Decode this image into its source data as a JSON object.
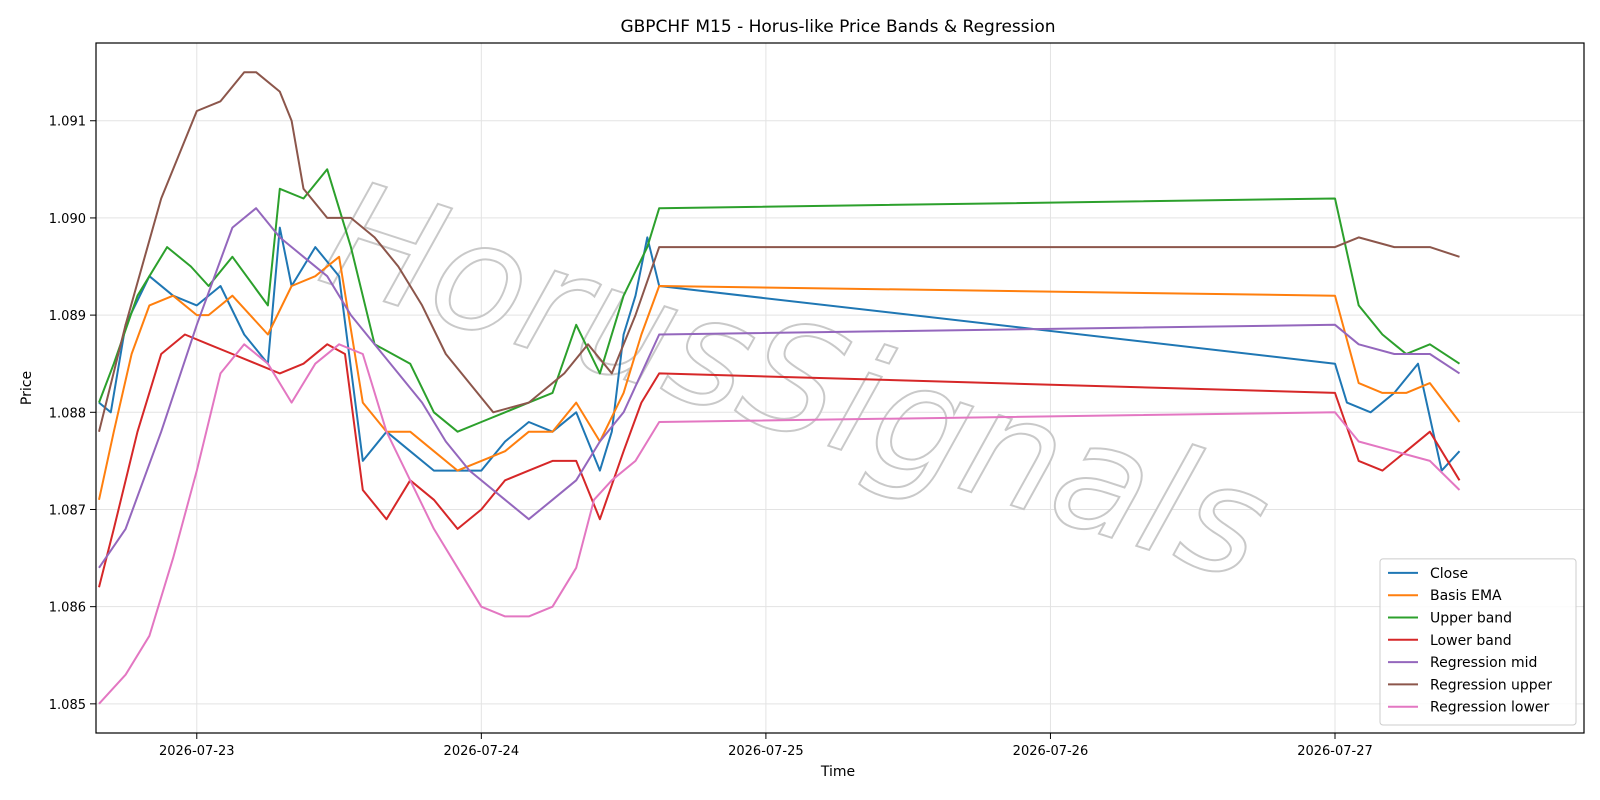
{
  "watermark": "HorusSignals",
  "chart_data": {
    "type": "line",
    "title": "GBPCHF M15 - Horus-like Price Bands & Regression",
    "xlabel": "Time",
    "ylabel": "Price",
    "x_tick_labels": [
      "2026-07-23",
      "2026-07-24",
      "2026-07-25",
      "2026-07-26",
      "2026-07-27"
    ],
    "y_tick_labels": [
      "1.085",
      "1.086",
      "1.087",
      "1.088",
      "1.089",
      "1.090",
      "1.091"
    ],
    "x_range_days": [
      "2026-07-22 15:30",
      "2026-07-27 21:00"
    ],
    "ylim": [
      1.0847,
      1.0918
    ],
    "grid": true,
    "legend_position": "lower-right",
    "series": [
      {
        "name": "Close",
        "color": "#1f77b4",
        "points": [
          [
            "2026-07-22 15:45",
            1.0881
          ],
          [
            "2026-07-22 16:45",
            1.088
          ],
          [
            "2026-07-22 18:00",
            1.0889
          ],
          [
            "2026-07-22 20:00",
            1.0894
          ],
          [
            "2026-07-22 22:00",
            1.0892
          ],
          [
            "2026-07-23 00:00",
            1.0891
          ],
          [
            "2026-07-23 02:00",
            1.0893
          ],
          [
            "2026-07-23 04:00",
            1.0888
          ],
          [
            "2026-07-23 06:00",
            1.0885
          ],
          [
            "2026-07-23 07:00",
            1.0899
          ],
          [
            "2026-07-23 08:00",
            1.0893
          ],
          [
            "2026-07-23 10:00",
            1.0897
          ],
          [
            "2026-07-23 12:00",
            1.0894
          ],
          [
            "2026-07-23 14:00",
            1.0875
          ],
          [
            "2026-07-23 16:00",
            1.0878
          ],
          [
            "2026-07-23 18:00",
            1.0876
          ],
          [
            "2026-07-23 20:00",
            1.0874
          ],
          [
            "2026-07-23 22:00",
            1.0874
          ],
          [
            "2026-07-24 00:00",
            1.0874
          ],
          [
            "2026-07-24 02:00",
            1.0877
          ],
          [
            "2026-07-24 04:00",
            1.0879
          ],
          [
            "2026-07-24 06:00",
            1.0878
          ],
          [
            "2026-07-24 08:00",
            1.088
          ],
          [
            "2026-07-24 10:00",
            1.0874
          ],
          [
            "2026-07-24 11:00",
            1.0878
          ],
          [
            "2026-07-24 12:00",
            1.0888
          ],
          [
            "2026-07-24 13:00",
            1.0892
          ],
          [
            "2026-07-24 14:00",
            1.0898
          ],
          [
            "2026-07-24 15:00",
            1.0893
          ],
          [
            "2026-07-27 00:00",
            1.0885
          ],
          [
            "2026-07-27 01:00",
            1.0881
          ],
          [
            "2026-07-27 03:00",
            1.088
          ],
          [
            "2026-07-27 05:00",
            1.0882
          ],
          [
            "2026-07-27 07:00",
            1.0885
          ],
          [
            "2026-07-27 09:00",
            1.0874
          ],
          [
            "2026-07-27 10:30",
            1.0876
          ]
        ]
      },
      {
        "name": "Basis EMA",
        "color": "#ff7f0e",
        "points": [
          [
            "2026-07-22 15:45",
            1.0871
          ],
          [
            "2026-07-22 17:00",
            1.0878
          ],
          [
            "2026-07-22 18:30",
            1.0886
          ],
          [
            "2026-07-22 20:00",
            1.0891
          ],
          [
            "2026-07-22 22:00",
            1.0892
          ],
          [
            "2026-07-23 00:00",
            1.089
          ],
          [
            "2026-07-23 01:00",
            1.089
          ],
          [
            "2026-07-23 03:00",
            1.0892
          ],
          [
            "2026-07-23 06:00",
            1.0888
          ],
          [
            "2026-07-23 08:00",
            1.0893
          ],
          [
            "2026-07-23 10:00",
            1.0894
          ],
          [
            "2026-07-23 12:00",
            1.0896
          ],
          [
            "2026-07-23 14:00",
            1.0881
          ],
          [
            "2026-07-23 16:00",
            1.0878
          ],
          [
            "2026-07-23 18:00",
            1.0878
          ],
          [
            "2026-07-23 20:00",
            1.0876
          ],
          [
            "2026-07-23 22:00",
            1.0874
          ],
          [
            "2026-07-24 00:00",
            1.0875
          ],
          [
            "2026-07-24 02:00",
            1.0876
          ],
          [
            "2026-07-24 04:00",
            1.0878
          ],
          [
            "2026-07-24 06:00",
            1.0878
          ],
          [
            "2026-07-24 08:00",
            1.0881
          ],
          [
            "2026-07-24 10:00",
            1.0877
          ],
          [
            "2026-07-24 12:00",
            1.0882
          ],
          [
            "2026-07-24 13:30",
            1.0888
          ],
          [
            "2026-07-24 15:00",
            1.0893
          ],
          [
            "2026-07-27 00:00",
            1.0892
          ],
          [
            "2026-07-27 02:00",
            1.0883
          ],
          [
            "2026-07-27 04:00",
            1.0882
          ],
          [
            "2026-07-27 06:00",
            1.0882
          ],
          [
            "2026-07-27 08:00",
            1.0883
          ],
          [
            "2026-07-27 10:30",
            1.0879
          ]
        ]
      },
      {
        "name": "Upper band",
        "color": "#2ca02c",
        "points": [
          [
            "2026-07-22 15:45",
            1.0881
          ],
          [
            "2026-07-22 17:00",
            1.0885
          ],
          [
            "2026-07-22 19:00",
            1.0892
          ],
          [
            "2026-07-22 21:30",
            1.0897
          ],
          [
            "2026-07-22 23:30",
            1.0895
          ],
          [
            "2026-07-23 01:00",
            1.0893
          ],
          [
            "2026-07-23 03:00",
            1.0896
          ],
          [
            "2026-07-23 06:00",
            1.0891
          ],
          [
            "2026-07-23 07:00",
            1.0903
          ],
          [
            "2026-07-23 09:00",
            1.0902
          ],
          [
            "2026-07-23 11:00",
            1.0905
          ],
          [
            "2026-07-23 13:00",
            1.0897
          ],
          [
            "2026-07-23 15:00",
            1.0887
          ],
          [
            "2026-07-23 18:00",
            1.0885
          ],
          [
            "2026-07-23 20:00",
            1.088
          ],
          [
            "2026-07-23 22:00",
            1.0878
          ],
          [
            "2026-07-24 00:00",
            1.0879
          ],
          [
            "2026-07-24 02:00",
            1.088
          ],
          [
            "2026-07-24 04:00",
            1.0881
          ],
          [
            "2026-07-24 06:00",
            1.0882
          ],
          [
            "2026-07-24 08:00",
            1.0889
          ],
          [
            "2026-07-24 10:00",
            1.0884
          ],
          [
            "2026-07-24 12:00",
            1.0892
          ],
          [
            "2026-07-24 14:00",
            1.0897
          ],
          [
            "2026-07-24 15:00",
            1.0901
          ],
          [
            "2026-07-27 00:00",
            1.0902
          ],
          [
            "2026-07-27 02:00",
            1.0891
          ],
          [
            "2026-07-27 04:00",
            1.0888
          ],
          [
            "2026-07-27 06:00",
            1.0886
          ],
          [
            "2026-07-27 08:00",
            1.0887
          ],
          [
            "2026-07-27 10:30",
            1.0885
          ]
        ]
      },
      {
        "name": "Lower band",
        "color": "#d62728",
        "points": [
          [
            "2026-07-22 15:45",
            1.0862
          ],
          [
            "2026-07-22 17:00",
            1.0868
          ],
          [
            "2026-07-22 19:00",
            1.0878
          ],
          [
            "2026-07-22 21:00",
            1.0886
          ],
          [
            "2026-07-22 23:00",
            1.0888
          ],
          [
            "2026-07-23 01:00",
            1.0887
          ],
          [
            "2026-07-23 03:00",
            1.0886
          ],
          [
            "2026-07-23 05:00",
            1.0885
          ],
          [
            "2026-07-23 07:00",
            1.0884
          ],
          [
            "2026-07-23 09:00",
            1.0885
          ],
          [
            "2026-07-23 11:00",
            1.0887
          ],
          [
            "2026-07-23 12:30",
            1.0886
          ],
          [
            "2026-07-23 14:00",
            1.0872
          ],
          [
            "2026-07-23 16:00",
            1.0869
          ],
          [
            "2026-07-23 18:00",
            1.0873
          ],
          [
            "2026-07-23 20:00",
            1.0871
          ],
          [
            "2026-07-23 22:00",
            1.0868
          ],
          [
            "2026-07-24 00:00",
            1.087
          ],
          [
            "2026-07-24 02:00",
            1.0873
          ],
          [
            "2026-07-24 04:00",
            1.0874
          ],
          [
            "2026-07-24 06:00",
            1.0875
          ],
          [
            "2026-07-24 08:00",
            1.0875
          ],
          [
            "2026-07-24 10:00",
            1.0869
          ],
          [
            "2026-07-24 12:00",
            1.0876
          ],
          [
            "2026-07-24 13:30",
            1.0881
          ],
          [
            "2026-07-24 15:00",
            1.0884
          ],
          [
            "2026-07-27 00:00",
            1.0882
          ],
          [
            "2026-07-27 02:00",
            1.0875
          ],
          [
            "2026-07-27 04:00",
            1.0874
          ],
          [
            "2026-07-27 06:00",
            1.0876
          ],
          [
            "2026-07-27 08:00",
            1.0878
          ],
          [
            "2026-07-27 10:30",
            1.0873
          ]
        ]
      },
      {
        "name": "Regression mid",
        "color": "#9467bd",
        "points": [
          [
            "2026-07-22 15:45",
            1.0864
          ],
          [
            "2026-07-22 18:00",
            1.0868
          ],
          [
            "2026-07-22 21:00",
            1.0878
          ],
          [
            "2026-07-23 00:00",
            1.0889
          ],
          [
            "2026-07-23 03:00",
            1.0899
          ],
          [
            "2026-07-23 05:00",
            1.0901
          ],
          [
            "2026-07-23 07:00",
            1.0898
          ],
          [
            "2026-07-23 09:00",
            1.0896
          ],
          [
            "2026-07-23 11:00",
            1.0894
          ],
          [
            "2026-07-23 13:00",
            1.089
          ],
          [
            "2026-07-23 15:00",
            1.0887
          ],
          [
            "2026-07-23 17:00",
            1.0884
          ],
          [
            "2026-07-23 19:00",
            1.0881
          ],
          [
            "2026-07-23 21:00",
            1.0877
          ],
          [
            "2026-07-23 23:00",
            1.0874
          ],
          [
            "2026-07-24 02:00",
            1.0871
          ],
          [
            "2026-07-24 04:00",
            1.0869
          ],
          [
            "2026-07-24 06:00",
            1.0871
          ],
          [
            "2026-07-24 08:00",
            1.0873
          ],
          [
            "2026-07-24 10:00",
            1.0877
          ],
          [
            "2026-07-24 12:00",
            1.088
          ],
          [
            "2026-07-24 13:30",
            1.0884
          ],
          [
            "2026-07-24 15:00",
            1.0888
          ],
          [
            "2026-07-27 00:00",
            1.0889
          ],
          [
            "2026-07-27 02:00",
            1.0887
          ],
          [
            "2026-07-27 05:00",
            1.0886
          ],
          [
            "2026-07-27 08:00",
            1.0886
          ],
          [
            "2026-07-27 10:30",
            1.0884
          ]
        ]
      },
      {
        "name": "Regression upper",
        "color": "#8c564b",
        "points": [
          [
            "2026-07-22 15:45",
            1.0878
          ],
          [
            "2026-07-22 18:00",
            1.0889
          ],
          [
            "2026-07-22 21:00",
            1.0902
          ],
          [
            "2026-07-23 00:00",
            1.0911
          ],
          [
            "2026-07-23 02:00",
            1.0912
          ],
          [
            "2026-07-23 04:00",
            1.0915
          ],
          [
            "2026-07-23 05:00",
            1.0915
          ],
          [
            "2026-07-23 07:00",
            1.0913
          ],
          [
            "2026-07-23 08:00",
            1.091
          ],
          [
            "2026-07-23 09:00",
            1.0903
          ],
          [
            "2026-07-23 11:00",
            1.09
          ],
          [
            "2026-07-23 13:00",
            1.09
          ],
          [
            "2026-07-23 15:00",
            1.0898
          ],
          [
            "2026-07-23 17:00",
            1.0895
          ],
          [
            "2026-07-23 19:00",
            1.0891
          ],
          [
            "2026-07-23 21:00",
            1.0886
          ],
          [
            "2026-07-23 23:00",
            1.0883
          ],
          [
            "2026-07-24 01:00",
            1.088
          ],
          [
            "2026-07-24 04:00",
            1.0881
          ],
          [
            "2026-07-24 07:00",
            1.0884
          ],
          [
            "2026-07-24 09:00",
            1.0887
          ],
          [
            "2026-07-24 11:00",
            1.0884
          ],
          [
            "2026-07-24 13:00",
            1.089
          ],
          [
            "2026-07-24 15:00",
            1.0897
          ],
          [
            "2026-07-27 00:00",
            1.0897
          ],
          [
            "2026-07-27 02:00",
            1.0898
          ],
          [
            "2026-07-27 05:00",
            1.0897
          ],
          [
            "2026-07-27 08:00",
            1.0897
          ],
          [
            "2026-07-27 10:30",
            1.0896
          ]
        ]
      },
      {
        "name": "Regression lower",
        "color": "#e377c2",
        "points": [
          [
            "2026-07-22 15:45",
            1.085
          ],
          [
            "2026-07-22 18:00",
            1.0853
          ],
          [
            "2026-07-22 20:00",
            1.0857
          ],
          [
            "2026-07-22 22:00",
            1.0865
          ],
          [
            "2026-07-23 00:00",
            1.0874
          ],
          [
            "2026-07-23 02:00",
            1.0884
          ],
          [
            "2026-07-23 04:00",
            1.0887
          ],
          [
            "2026-07-23 06:00",
            1.0885
          ],
          [
            "2026-07-23 08:00",
            1.0881
          ],
          [
            "2026-07-23 10:00",
            1.0885
          ],
          [
            "2026-07-23 12:00",
            1.0887
          ],
          [
            "2026-07-23 14:00",
            1.0886
          ],
          [
            "2026-07-23 16:00",
            1.0878
          ],
          [
            "2026-07-23 18:00",
            1.0873
          ],
          [
            "2026-07-23 20:00",
            1.0868
          ],
          [
            "2026-07-23 22:00",
            1.0864
          ],
          [
            "2026-07-24 00:00",
            1.086
          ],
          [
            "2026-07-24 02:00",
            1.0859
          ],
          [
            "2026-07-24 04:00",
            1.0859
          ],
          [
            "2026-07-24 06:00",
            1.086
          ],
          [
            "2026-07-24 08:00",
            1.0864
          ],
          [
            "2026-07-24 09:30",
            1.0871
          ],
          [
            "2026-07-24 11:00",
            1.0873
          ],
          [
            "2026-07-24 13:00",
            1.0875
          ],
          [
            "2026-07-24 15:00",
            1.0879
          ],
          [
            "2026-07-27 00:00",
            1.088
          ],
          [
            "2026-07-27 02:00",
            1.0877
          ],
          [
            "2026-07-27 05:00",
            1.0876
          ],
          [
            "2026-07-27 08:00",
            1.0875
          ],
          [
            "2026-07-27 10:30",
            1.0872
          ]
        ]
      }
    ]
  }
}
